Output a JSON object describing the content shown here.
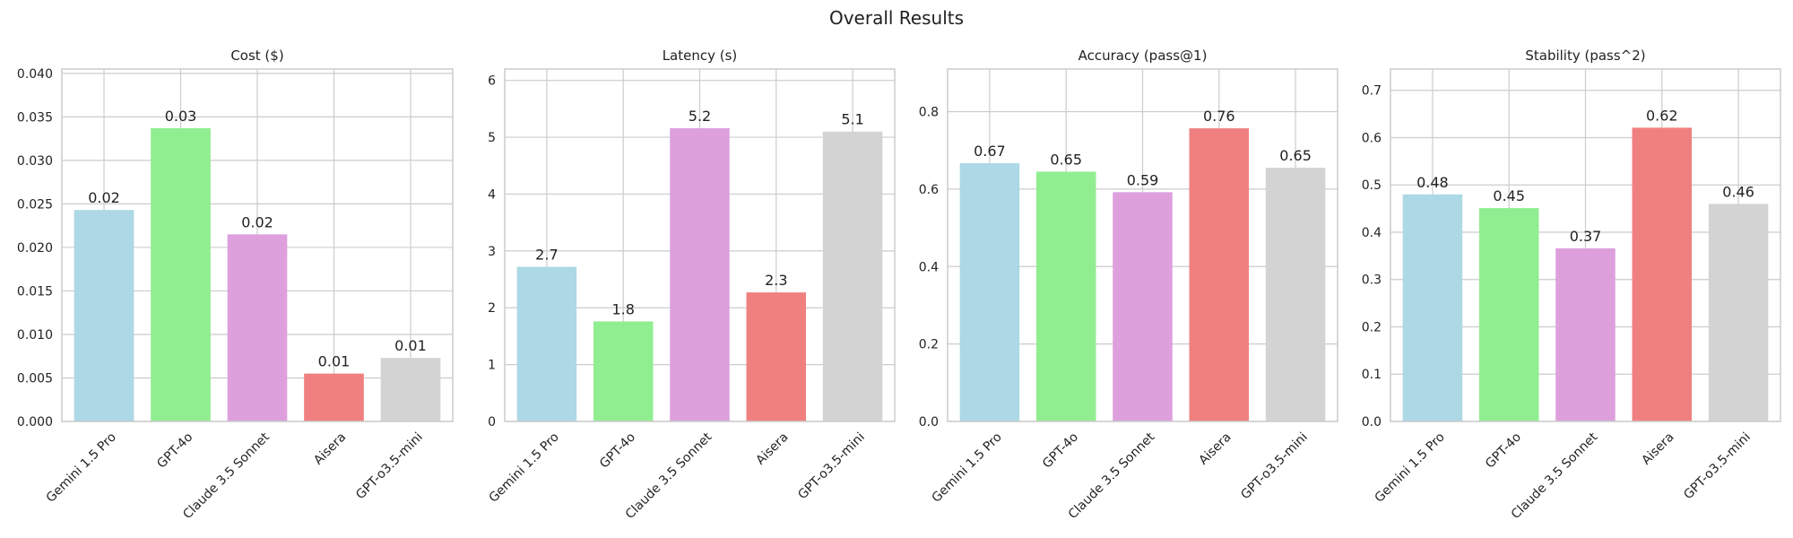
{
  "figure": {
    "title": "Overall Results"
  },
  "chart_data": [
    {
      "type": "bar",
      "title": "Cost ($)",
      "categories": [
        "Gemini 1.5 Pro",
        "GPT-4o",
        "Claude 3.5 Sonnet",
        "Aisera",
        "GPT-o3.5-mini"
      ],
      "values": [
        0.0243,
        0.0337,
        0.0215,
        0.0055,
        0.0073
      ],
      "data_labels": [
        "0.02",
        "0.03",
        "0.02",
        "0.01",
        "0.01"
      ],
      "colors": [
        "#add8e6",
        "#90ee90",
        "#dda0dd",
        "#f08080",
        "#d3d3d3"
      ],
      "ylim": [
        0,
        0.0405
      ],
      "yticks": [
        0,
        0.005,
        0.01,
        0.015,
        0.02,
        0.025,
        0.03,
        0.035,
        0.04
      ],
      "ytick_labels": [
        "0.000",
        "0.005",
        "0.010",
        "0.015",
        "0.020",
        "0.025",
        "0.030",
        "0.035",
        "0.040"
      ],
      "grid": true
    },
    {
      "type": "bar",
      "title": "Latency (s)",
      "categories": [
        "Gemini 1.5 Pro",
        "GPT-4o",
        "Claude 3.5 Sonnet",
        "Aisera",
        "GPT-o3.5-mini"
      ],
      "values": [
        2.72,
        1.76,
        5.16,
        2.27,
        5.1
      ],
      "data_labels": [
        "2.7",
        "1.8",
        "5.2",
        "2.3",
        "5.1"
      ],
      "colors": [
        "#add8e6",
        "#90ee90",
        "#dda0dd",
        "#f08080",
        "#d3d3d3"
      ],
      "ylim": [
        0,
        6.2
      ],
      "yticks": [
        0,
        1,
        2,
        3,
        4,
        5,
        6
      ],
      "ytick_labels": [
        "0",
        "1",
        "2",
        "3",
        "4",
        "5",
        "6"
      ],
      "grid": true
    },
    {
      "type": "bar",
      "title": "Accuracy (pass@1)",
      "categories": [
        "Gemini 1.5 Pro",
        "GPT-4o",
        "Claude 3.5 Sonnet",
        "Aisera",
        "GPT-o3.5-mini"
      ],
      "values": [
        0.667,
        0.645,
        0.592,
        0.757,
        0.655
      ],
      "data_labels": [
        "0.67",
        "0.65",
        "0.59",
        "0.76",
        "0.65"
      ],
      "colors": [
        "#add8e6",
        "#90ee90",
        "#dda0dd",
        "#f08080",
        "#d3d3d3"
      ],
      "ylim": [
        0,
        0.91
      ],
      "yticks": [
        0,
        0.2,
        0.4,
        0.6,
        0.8
      ],
      "ytick_labels": [
        "0.0",
        "0.2",
        "0.4",
        "0.6",
        "0.8"
      ],
      "grid": true
    },
    {
      "type": "bar",
      "title": "Stability (pass^2)",
      "categories": [
        "Gemini 1.5 Pro",
        "GPT-4o",
        "Claude 3.5 Sonnet",
        "Aisera",
        "GPT-o3.5-mini"
      ],
      "values": [
        0.48,
        0.451,
        0.366,
        0.621,
        0.46
      ],
      "data_labels": [
        "0.48",
        "0.45",
        "0.37",
        "0.62",
        "0.46"
      ],
      "colors": [
        "#add8e6",
        "#90ee90",
        "#dda0dd",
        "#f08080",
        "#d3d3d3"
      ],
      "ylim": [
        0,
        0.745
      ],
      "yticks": [
        0,
        0.1,
        0.2,
        0.3,
        0.4,
        0.5,
        0.6,
        0.7
      ],
      "ytick_labels": [
        "0.0",
        "0.1",
        "0.2",
        "0.3",
        "0.4",
        "0.5",
        "0.6",
        "0.7"
      ],
      "grid": true
    }
  ]
}
